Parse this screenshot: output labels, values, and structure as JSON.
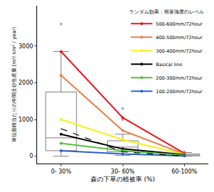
{
  "chart_data": {
    "type": "box",
    "x_label": "森の下草の植被率 (%)",
    "y_label": "単位面積当たりの年間土砂生産量 (m³/ km² / year)",
    "legend_title": "ランダム効果：雨量強度のレベル",
    "legend": "top right",
    "categories": [
      "0- 30%",
      "30- 60%",
      "60-100%"
    ],
    "ylim": [
      -200,
      4100
    ],
    "yticks": [
      0,
      1000,
      2000,
      3000
    ],
    "boxes": {
      "color": "#7f7f7f",
      "lower": [
        0,
        20,
        0
      ],
      "q1": [
        150,
        120,
        10
      ],
      "median": [
        500,
        250,
        30
      ],
      "q3": [
        1750,
        420,
        60
      ],
      "upper": [
        2850,
        600,
        100
      ]
    },
    "outliers": {
      "color": "#b0b0b0",
      "categories": [
        "0- 30%",
        "30- 60%",
        "30- 60%",
        "60-100%"
      ],
      "values": [
        3600,
        1300,
        1000,
        120
      ]
    },
    "series": [
      {
        "name": "500-600mm/72hour",
        "color": "#e8191f",
        "values": [
          2850,
          1050,
          80
        ]
      },
      {
        "name": "400-500mm/72hour",
        "color": "#e5834a",
        "values": [
          2200,
          700,
          60
        ]
      },
      {
        "name": "300-400mm/72hour",
        "color": "#f2f21c",
        "values": [
          1000,
          450,
          50
        ]
      },
      {
        "name": "Basical line",
        "color": "#000000",
        "values": [
          600,
          200,
          40
        ]
      },
      {
        "name": "200-300mm/72hour",
        "color": "#52c23a",
        "values": [
          350,
          150,
          30
        ]
      },
      {
        "name": "100-200mm/72hour",
        "color": "#2a5fd0",
        "values": [
          150,
          60,
          10
        ]
      },
      {
        "color": "#000000",
        "line_style": "dashed",
        "values": [
          750,
          120,
          0
        ]
      }
    ]
  }
}
